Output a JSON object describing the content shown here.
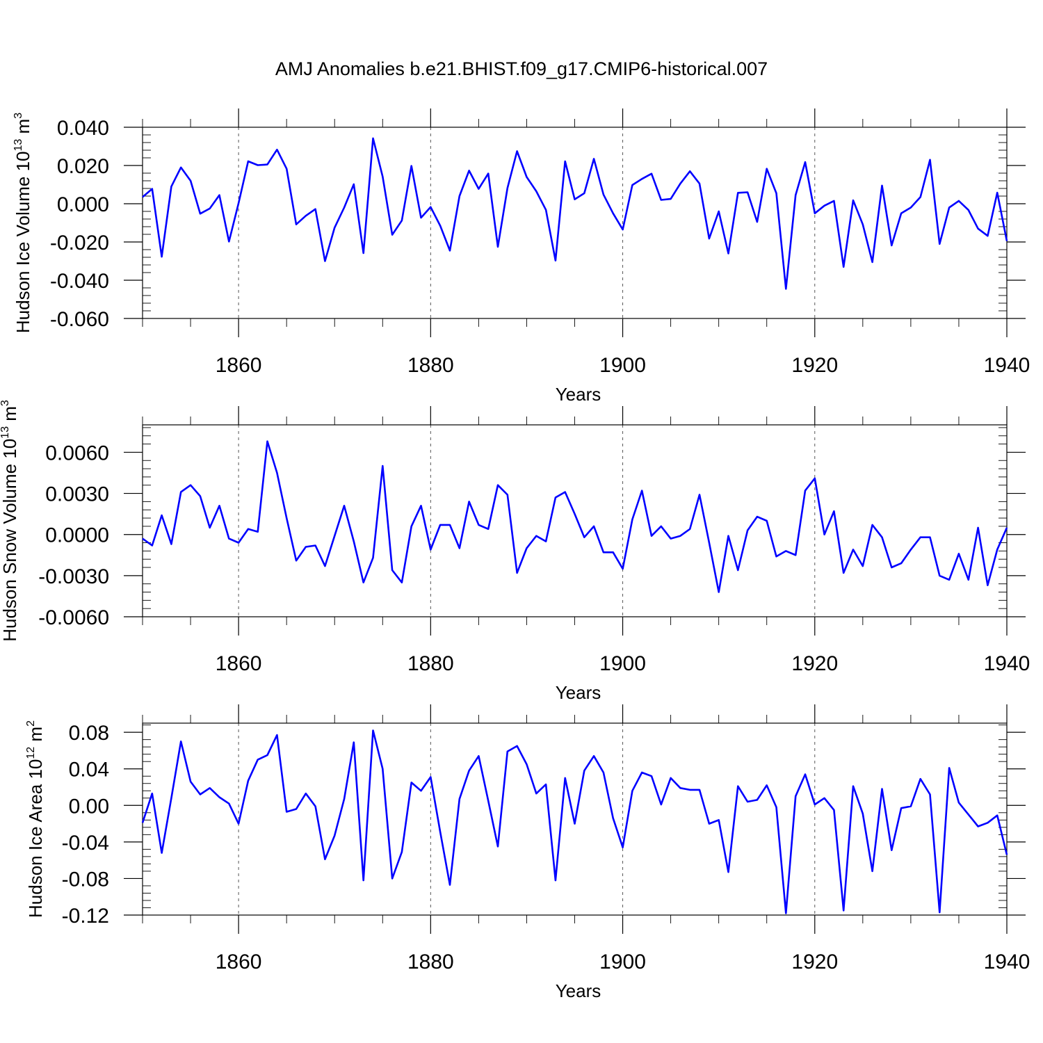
{
  "title": "AMJ Anomalies b.e21.BHIST.f09_g17.CMIP6-historical.007",
  "colors": {
    "line": "#0000ff",
    "axis": "#000000",
    "grid": "#555555"
  },
  "chart_data": [
    {
      "type": "line",
      "ylabel_main": "Hudson Ice Volume 10",
      "ylabel_exp": "13",
      "ylabel_unit": "m",
      "ylabel_unit_exp": "3",
      "xlabel": "Years",
      "xlim": [
        1850,
        1940
      ],
      "ylim": [
        -0.06,
        0.04
      ],
      "yticks": [
        "0.040",
        "0.020",
        "0.000",
        "-0.020",
        "-0.040",
        "-0.060"
      ],
      "ytick_values": [
        0.04,
        0.02,
        0.0,
        -0.02,
        -0.04,
        -0.06
      ],
      "xticks": [
        "1860",
        "1880",
        "1900",
        "1920",
        "1940"
      ],
      "xtick_values": [
        1860,
        1880,
        1900,
        1920,
        1940
      ],
      "x_start": 1850,
      "values": [
        0.0035,
        0.0078,
        -0.0277,
        0.009,
        0.019,
        0.012,
        -0.0052,
        -0.0025,
        0.0045,
        -0.0198,
        0.0003,
        0.0222,
        0.0202,
        0.0205,
        0.0283,
        0.0183,
        -0.0108,
        -0.0063,
        -0.0028,
        -0.03,
        -0.0125,
        -0.002,
        0.0102,
        -0.0258,
        0.0342,
        0.0142,
        -0.0162,
        -0.0088,
        0.0198,
        -0.0073,
        -0.0017,
        -0.0115,
        -0.0245,
        0.004,
        0.0173,
        0.0078,
        0.0158,
        -0.0225,
        0.0082,
        0.0275,
        0.014,
        0.0065,
        -0.0032,
        -0.0297,
        0.0222,
        0.0023,
        0.0055,
        0.0235,
        0.0048,
        -0.005,
        -0.0135,
        0.0098,
        0.013,
        0.0157,
        0.002,
        0.0025,
        0.0105,
        0.017,
        0.0105,
        -0.0182,
        -0.004,
        -0.026,
        0.0057,
        0.006,
        -0.0095,
        0.0183,
        0.0055,
        -0.0445,
        0.0045,
        0.0218,
        -0.005,
        -0.001,
        0.0015,
        -0.033,
        0.0018,
        -0.0108,
        -0.0305,
        0.0095,
        -0.0218,
        -0.005,
        -0.002,
        0.0035,
        0.023,
        -0.021,
        -0.002,
        0.0015,
        -0.0033,
        -0.013,
        -0.0168,
        0.0058,
        -0.0195
      ]
    },
    {
      "type": "line",
      "ylabel_main": "Hudson Snow Volume 10",
      "ylabel_exp": "13",
      "ylabel_unit": "m",
      "ylabel_unit_exp": "3",
      "xlabel": "Years",
      "xlim": [
        1850,
        1940
      ],
      "ylim": [
        -0.006,
        0.008
      ],
      "yticks": [
        "0.0060",
        "0.0030",
        "0.0000",
        "-0.0030",
        "-0.0060"
      ],
      "ytick_values": [
        0.006,
        0.003,
        0.0,
        -0.003,
        -0.006
      ],
      "xticks": [
        "1860",
        "1880",
        "1900",
        "1920",
        "1940"
      ],
      "xtick_values": [
        1860,
        1880,
        1900,
        1920,
        1940
      ],
      "x_start": 1850,
      "values": [
        -0.0003,
        -0.0008,
        0.0014,
        -0.0007,
        0.0031,
        0.0036,
        0.0028,
        0.0005,
        0.0021,
        -0.0003,
        -0.0006,
        0.0004,
        0.0002,
        0.0068,
        0.0045,
        0.0012,
        -0.0019,
        -0.0009,
        -0.0008,
        -0.0023,
        -0.0001,
        0.0021,
        -0.0005,
        -0.0035,
        -0.0017,
        0.005,
        -0.0026,
        -0.0035,
        0.0006,
        0.0021,
        -0.0011,
        0.0007,
        0.0007,
        -0.001,
        0.0024,
        0.0007,
        0.0004,
        0.0036,
        0.0029,
        -0.0028,
        -0.001,
        -0.0001,
        -0.0005,
        0.0027,
        0.0031,
        0.0015,
        -0.0002,
        0.0006,
        -0.0013,
        -0.0013,
        -0.0025,
        0.0011,
        0.0032,
        -0.0001,
        0.0006,
        -0.0003,
        -0.0001,
        0.0004,
        0.0029,
        -0.0006,
        -0.0042,
        -0.0001,
        -0.0026,
        0.0003,
        0.0013,
        0.001,
        -0.0016,
        -0.0012,
        -0.0015,
        0.0032,
        0.0041,
        0.0,
        0.0017,
        -0.0028,
        -0.0011,
        -0.0023,
        0.0007,
        -0.0002,
        -0.0024,
        -0.0021,
        -0.0011,
        -0.0002,
        -0.0002,
        -0.003,
        -0.0033,
        -0.0014,
        -0.0033,
        0.0005,
        -0.0037,
        -0.0011,
        0.0005
      ]
    },
    {
      "type": "line",
      "ylabel_main": "Hudson Ice Area 10",
      "ylabel_exp": "12",
      "ylabel_unit": "m",
      "ylabel_unit_exp": "2",
      "xlabel": "Years",
      "xlim": [
        1850,
        1940
      ],
      "ylim": [
        -0.12,
        0.09
      ],
      "yticks": [
        "0.08",
        "0.04",
        "0.00",
        "-0.04",
        "-0.08",
        "-0.12"
      ],
      "ytick_values": [
        0.08,
        0.04,
        0.0,
        -0.04,
        -0.08,
        -0.12
      ],
      "xticks": [
        "1860",
        "1880",
        "1900",
        "1920",
        "1940"
      ],
      "xtick_values": [
        1860,
        1880,
        1900,
        1920,
        1940
      ],
      "x_start": 1850,
      "values": [
        -0.019,
        0.013,
        -0.052,
        0.008,
        0.07,
        0.026,
        0.012,
        0.019,
        0.009,
        0.002,
        -0.02,
        0.027,
        0.05,
        0.055,
        0.077,
        -0.007,
        -0.004,
        0.013,
        -0.001,
        -0.059,
        -0.033,
        0.007,
        0.069,
        -0.082,
        0.082,
        0.04,
        -0.08,
        -0.051,
        0.025,
        0.016,
        0.031,
        -0.029,
        -0.087,
        0.007,
        0.038,
        0.054,
        0.005,
        -0.045,
        0.059,
        0.065,
        0.045,
        0.013,
        0.023,
        -0.082,
        0.03,
        -0.02,
        0.038,
        0.054,
        0.036,
        -0.014,
        -0.046,
        0.016,
        0.036,
        0.032,
        0.001,
        0.03,
        0.019,
        0.017,
        0.017,
        -0.02,
        -0.016,
        -0.073,
        0.021,
        0.004,
        0.006,
        0.022,
        -0.002,
        -0.118,
        0.01,
        0.034,
        0.001,
        0.008,
        -0.005,
        -0.115,
        0.021,
        -0.009,
        -0.072,
        0.018,
        -0.049,
        -0.003,
        -0.001,
        0.029,
        0.012,
        -0.117,
        0.041,
        0.003,
        -0.01,
        -0.023,
        -0.019,
        -0.011,
        -0.054
      ]
    }
  ]
}
